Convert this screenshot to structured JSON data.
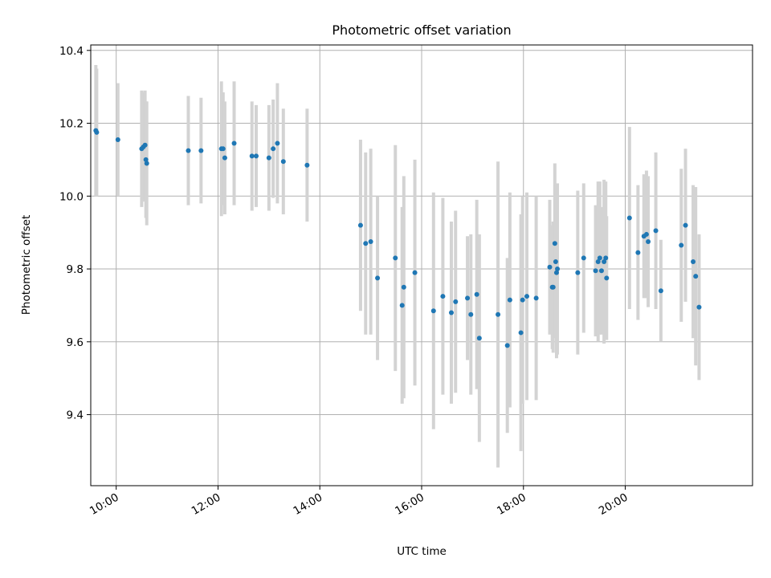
{
  "chart_data": {
    "type": "scatter",
    "title": "Photometric offset variation",
    "xlabel": "UTC time",
    "ylabel": "Photometric offset",
    "grid": true,
    "xlim": [
      "09:30",
      "22:30"
    ],
    "ylim": [
      9.205,
      10.415
    ],
    "x_ticks": [
      "10:00",
      "12:00",
      "14:00",
      "16:00",
      "18:00",
      "20:00"
    ],
    "y_ticks": [
      9.4,
      9.6,
      9.8,
      10.0,
      10.2,
      10.4
    ],
    "colors": {
      "points": "#1f77b4",
      "error_bars": "#d3d3d3"
    },
    "points": [
      {
        "x": "09:36",
        "y": 10.18,
        "err": 0.18
      },
      {
        "x": "09:37",
        "y": 10.175,
        "err": 0.175
      },
      {
        "x": "10:02",
        "y": 10.155,
        "err": 0.155
      },
      {
        "x": "10:30",
        "y": 10.13,
        "err": 0.16
      },
      {
        "x": "10:32",
        "y": 10.135,
        "err": 0.15
      },
      {
        "x": "10:34",
        "y": 10.14,
        "err": 0.15
      },
      {
        "x": "10:35",
        "y": 10.1,
        "err": 0.16
      },
      {
        "x": "10:36",
        "y": 10.09,
        "err": 0.17
      },
      {
        "x": "11:25",
        "y": 10.125,
        "err": 0.15
      },
      {
        "x": "11:40",
        "y": 10.125,
        "err": 0.145
      },
      {
        "x": "12:04",
        "y": 10.13,
        "err": 0.185
      },
      {
        "x": "12:06",
        "y": 10.13,
        "err": 0.155
      },
      {
        "x": "12:08",
        "y": 10.105,
        "err": 0.155
      },
      {
        "x": "12:19",
        "y": 10.145,
        "err": 0.17
      },
      {
        "x": "12:40",
        "y": 10.11,
        "err": 0.15
      },
      {
        "x": "12:45",
        "y": 10.11,
        "err": 0.14
      },
      {
        "x": "13:00",
        "y": 10.105,
        "err": 0.145
      },
      {
        "x": "13:05",
        "y": 10.13,
        "err": 0.135
      },
      {
        "x": "13:10",
        "y": 10.145,
        "err": 0.165
      },
      {
        "x": "13:17",
        "y": 10.095,
        "err": 0.145
      },
      {
        "x": "13:45",
        "y": 10.085,
        "err": 0.155
      },
      {
        "x": "14:48",
        "y": 9.92,
        "err": 0.235
      },
      {
        "x": "14:54",
        "y": 9.87,
        "err": 0.25
      },
      {
        "x": "15:00",
        "y": 9.875,
        "err": 0.255
      },
      {
        "x": "15:08",
        "y": 9.775,
        "err": 0.225
      },
      {
        "x": "15:29",
        "y": 9.83,
        "err": 0.31
      },
      {
        "x": "15:37",
        "y": 9.7,
        "err": 0.27
      },
      {
        "x": "15:39",
        "y": 9.75,
        "err": 0.305
      },
      {
        "x": "15:52",
        "y": 9.79,
        "err": 0.31
      },
      {
        "x": "16:14",
        "y": 9.685,
        "err": 0.325
      },
      {
        "x": "16:25",
        "y": 9.725,
        "err": 0.27
      },
      {
        "x": "16:35",
        "y": 9.68,
        "err": 0.25
      },
      {
        "x": "16:40",
        "y": 9.71,
        "err": 0.25
      },
      {
        "x": "16:54",
        "y": 9.72,
        "err": 0.17
      },
      {
        "x": "16:58",
        "y": 9.675,
        "err": 0.22
      },
      {
        "x": "17:05",
        "y": 9.73,
        "err": 0.26
      },
      {
        "x": "17:08",
        "y": 9.61,
        "err": 0.285
      },
      {
        "x": "17:30",
        "y": 9.675,
        "err": 0.42
      },
      {
        "x": "17:41",
        "y": 9.59,
        "err": 0.24
      },
      {
        "x": "17:44",
        "y": 9.715,
        "err": 0.295
      },
      {
        "x": "17:57",
        "y": 9.625,
        "err": 0.325
      },
      {
        "x": "17:59",
        "y": 9.715,
        "err": 0.285
      },
      {
        "x": "18:04",
        "y": 9.725,
        "err": 0.285
      },
      {
        "x": "18:15",
        "y": 9.72,
        "err": 0.28
      },
      {
        "x": "18:31",
        "y": 9.805,
        "err": 0.185
      },
      {
        "x": "18:34",
        "y": 9.75,
        "err": 0.17
      },
      {
        "x": "18:35",
        "y": 9.75,
        "err": 0.18
      },
      {
        "x": "18:37",
        "y": 9.87,
        "err": 0.22
      },
      {
        "x": "18:38",
        "y": 9.82,
        "err": 0.21
      },
      {
        "x": "18:39",
        "y": 9.79,
        "err": 0.235
      },
      {
        "x": "18:40",
        "y": 9.8,
        "err": 0.235
      },
      {
        "x": "19:04",
        "y": 9.79,
        "err": 0.225
      },
      {
        "x": "19:11",
        "y": 9.83,
        "err": 0.205
      },
      {
        "x": "19:25",
        "y": 9.795,
        "err": 0.18
      },
      {
        "x": "19:28",
        "y": 9.82,
        "err": 0.22
      },
      {
        "x": "19:30",
        "y": 9.83,
        "err": 0.21
      },
      {
        "x": "19:32",
        "y": 9.795,
        "err": 0.175
      },
      {
        "x": "19:35",
        "y": 9.82,
        "err": 0.225
      },
      {
        "x": "19:37",
        "y": 9.83,
        "err": 0.21
      },
      {
        "x": "19:38",
        "y": 9.775,
        "err": 0.17
      },
      {
        "x": "20:05",
        "y": 9.94,
        "err": 0.25
      },
      {
        "x": "20:15",
        "y": 9.845,
        "err": 0.185
      },
      {
        "x": "20:22",
        "y": 9.89,
        "err": 0.17
      },
      {
        "x": "20:25",
        "y": 9.895,
        "err": 0.175
      },
      {
        "x": "20:27",
        "y": 9.875,
        "err": 0.18
      },
      {
        "x": "20:36",
        "y": 9.905,
        "err": 0.215
      },
      {
        "x": "20:42",
        "y": 9.74,
        "err": 0.14
      },
      {
        "x": "21:06",
        "y": 9.865,
        "err": 0.21
      },
      {
        "x": "21:11",
        "y": 9.92,
        "err": 0.21
      },
      {
        "x": "21:20",
        "y": 9.82,
        "err": 0.21
      },
      {
        "x": "21:23",
        "y": 9.78,
        "err": 0.245
      },
      {
        "x": "21:27",
        "y": 9.695,
        "err": 0.2
      }
    ]
  }
}
